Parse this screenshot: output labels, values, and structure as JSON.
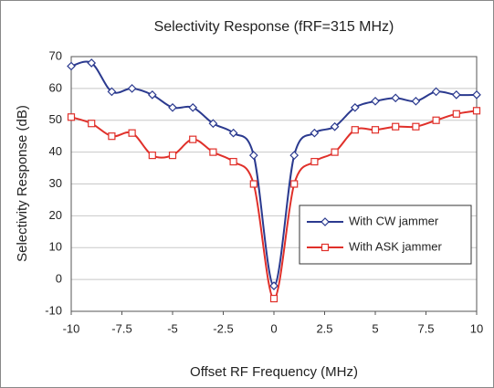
{
  "chart_data": {
    "type": "line",
    "title": "Selectivity Response (fRF=315 MHz)",
    "xlabel": "Offset RF Frequency (MHz)",
    "ylabel": "Selectivity Response (dB)",
    "x": [
      -10,
      -9,
      -8,
      -7,
      -6,
      -5,
      -4,
      -3,
      -2,
      -1,
      0,
      1,
      2,
      3,
      4,
      5,
      6,
      7,
      8,
      9,
      10
    ],
    "series": [
      {
        "name": "With CW jammer",
        "color": "#2b3a8f",
        "marker": "diamond",
        "values": [
          67,
          68,
          59,
          60,
          58,
          54,
          54,
          49,
          46,
          39,
          -2,
          39,
          46,
          48,
          54,
          56,
          57,
          56,
          59,
          58,
          58
        ]
      },
      {
        "name": "With ASK jammer",
        "color": "#e0302a",
        "marker": "square",
        "values": [
          51,
          49,
          45,
          46,
          39,
          39,
          44,
          40,
          37,
          30,
          -6,
          30,
          37,
          40,
          47,
          47,
          48,
          48,
          50,
          52,
          53
        ]
      }
    ],
    "xlim": [
      -10,
      10
    ],
    "xticks": [
      -10,
      -7.5,
      -5,
      -2.5,
      0,
      2.5,
      5,
      7.5,
      10
    ],
    "ylim": [
      -10,
      70
    ],
    "yticks": [
      -10,
      0,
      10,
      20,
      30,
      40,
      50,
      60,
      70
    ],
    "grid": true,
    "legend": "lower right"
  }
}
